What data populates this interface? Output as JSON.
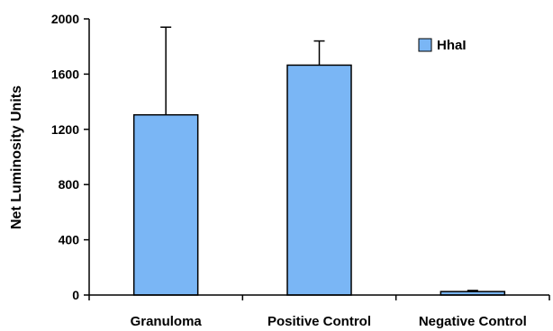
{
  "chart_data": {
    "type": "bar",
    "categories": [
      "Granuloma",
      "Positive Control",
      "Negative Control"
    ],
    "series": [
      {
        "name": "HhaI",
        "values": [
          1305,
          1665,
          25
        ],
        "error_upper": [
          635,
          175,
          8
        ]
      }
    ],
    "title": "",
    "xlabel": "",
    "ylabel": "Net Luminosity Units",
    "ylim": [
      0,
      2000
    ],
    "yticks": [
      "0",
      "400",
      "800",
      "1200",
      "1600",
      "2000"
    ],
    "grid": false,
    "legend": "top-right",
    "colors": {
      "bar_fill": "#7ab6f5",
      "bar_stroke": "#000000",
      "axis": "#000000"
    }
  }
}
